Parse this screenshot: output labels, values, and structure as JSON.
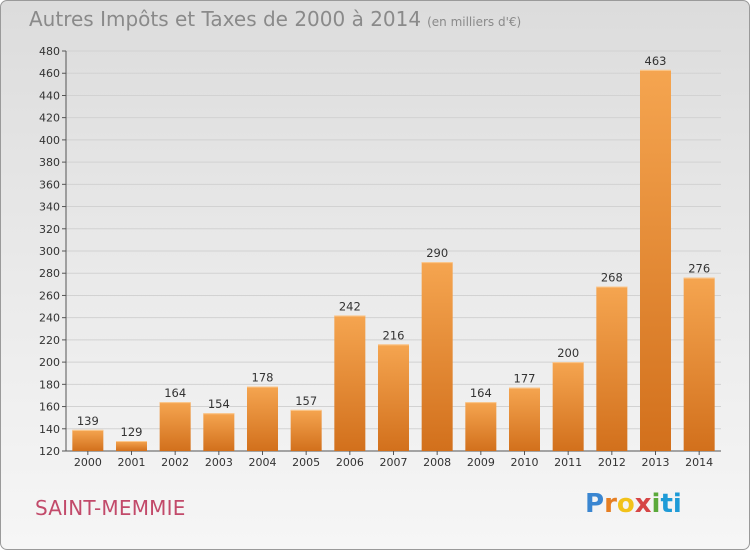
{
  "title": "Autres Impôts et Taxes de 2000 à 2014",
  "unit_label": "(en milliers d'€)",
  "commune": "SAINT-MEMMIE",
  "logo": {
    "text": "Proxiti",
    "letters": [
      "P",
      "r",
      "o",
      "x",
      "i",
      "ti"
    ]
  },
  "colors": {
    "bar_top": "#f5a550",
    "bar_bottom": "#d2701c",
    "grid": "#d2d2d2",
    "text": "#333333",
    "title": "#8a8a8a",
    "commune": "#c24a6a"
  },
  "chart_data": {
    "type": "bar",
    "categories": [
      "2000",
      "2001",
      "2002",
      "2003",
      "2004",
      "2005",
      "2006",
      "2007",
      "2008",
      "2009",
      "2010",
      "2011",
      "2012",
      "2013",
      "2014"
    ],
    "values": [
      139,
      129,
      164,
      154,
      178,
      157,
      242,
      216,
      290,
      164,
      177,
      200,
      268,
      463,
      276
    ],
    "ylim": [
      120,
      480
    ],
    "yticks": [
      120,
      140,
      160,
      180,
      200,
      220,
      240,
      260,
      280,
      300,
      320,
      340,
      360,
      380,
      400,
      420,
      440,
      460,
      480
    ],
    "grid": true,
    "data_labels": true
  }
}
